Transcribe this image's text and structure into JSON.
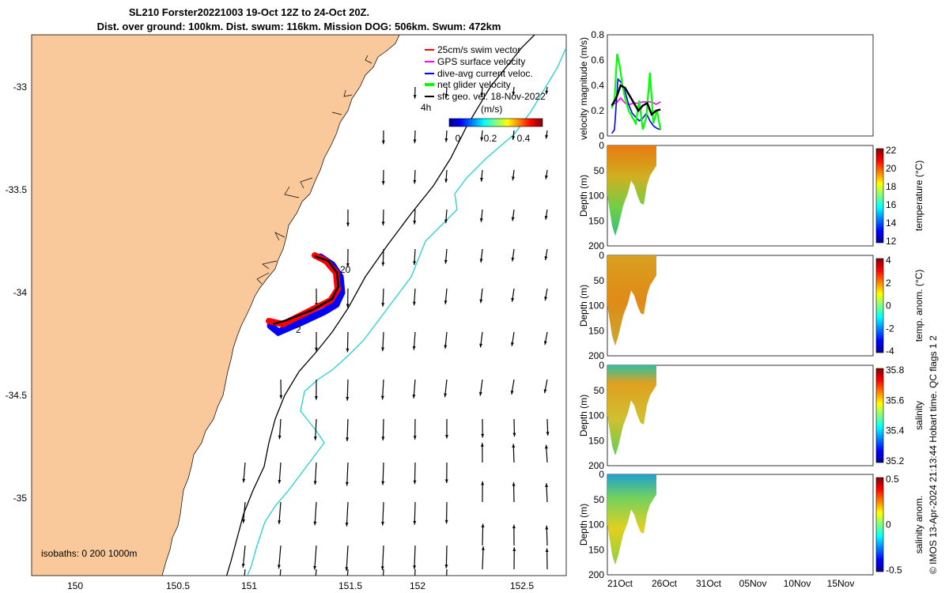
{
  "header": {
    "title_line1": "SL210 Forster20221003 19-Oct 12Z to 24-Oct 20Z.",
    "title_line2": "Dist. over ground: 100km. Dist. swum: 116km. Mission DOG: 506km. Swum: 472km"
  },
  "map": {
    "legend": [
      {
        "label": "25cm/s swim vector",
        "color": "#ff0000"
      },
      {
        "label": "GPS surface velocity",
        "color": "#ff00ff"
      },
      {
        "label": "dive-avg current veloc.",
        "color": "#0000ff"
      },
      {
        "label": "net glider velocity",
        "color": "#00ff00"
      },
      {
        "label": "sfc geo. vel. 18-Nov-2022",
        "color": "#000000"
      }
    ],
    "colorbar_title": "(m/s)",
    "colorbar_ticks": [
      "0",
      "0.2",
      "0.4"
    ],
    "speed_label": "4h",
    "isobaths_label": "isobaths: 0   200  1000m",
    "track_labels": [
      "20",
      "2"
    ],
    "x_ticks": [
      "150",
      "150.5",
      "151",
      "151.5",
      "152",
      "152.5"
    ],
    "y_ticks": [
      "-33",
      "-33.5",
      "-34",
      "-34.5",
      "-35"
    ],
    "land_color": "#f9c89b",
    "isobath_200_color": "#000000",
    "isobath_1000_color": "#22d3d3"
  },
  "chart_data": [
    {
      "type": "line",
      "title": "",
      "ylabel": "velocity magnitude (m/s)",
      "ylim": [
        0,
        0.8
      ],
      "y_ticks": [
        "0",
        "0.2",
        "0.4",
        "0.6",
        "0.8"
      ],
      "series": [
        {
          "name": "GPS surface velocity",
          "color": "#ff00ff",
          "x": [
            19.5,
            20,
            20.5,
            21,
            21.5,
            22,
            22.5,
            23,
            23.5,
            24,
            24.5,
            25
          ],
          "values": [
            0.25,
            0.26,
            0.3,
            0.26,
            0.25,
            0.26,
            0.26,
            0.27,
            0.27,
            0.27,
            0.25,
            0.27
          ]
        },
        {
          "name": "dive-avg current veloc.",
          "color": "#0000ff",
          "x": [
            19.5,
            19.8,
            20.2,
            20.6,
            21,
            21.4,
            21.8,
            22.2,
            22.6,
            23,
            23.4,
            23.8,
            24.2,
            24.6,
            25
          ],
          "values": [
            0.02,
            0.05,
            0.45,
            0.42,
            0.35,
            0.25,
            0.18,
            0.15,
            0.12,
            0.14,
            0.18,
            0.12,
            0.08,
            0.06,
            0.05
          ]
        },
        {
          "name": "net glider velocity",
          "color": "#00ff00",
          "x": [
            19.5,
            19.8,
            20.1,
            20.4,
            20.7,
            21,
            21.4,
            21.8,
            22.2,
            22.6,
            23,
            23.4,
            23.8,
            24.2,
            24.6,
            25
          ],
          "values": [
            0.22,
            0.28,
            0.65,
            0.55,
            0.4,
            0.3,
            0.2,
            0.15,
            0.1,
            0.28,
            0.05,
            0.15,
            0.5,
            0.1,
            0.2,
            0.05
          ]
        },
        {
          "name": "sfc geo. vel.",
          "color": "#000000",
          "x": [
            19.5,
            20,
            20.5,
            21,
            21.5,
            22,
            22.5,
            23,
            23.5,
            24,
            24.5,
            25
          ],
          "values": [
            0.24,
            0.3,
            0.4,
            0.38,
            0.32,
            0.26,
            0.2,
            0.24,
            0.26,
            0.17,
            0.2,
            0.21
          ]
        }
      ]
    },
    {
      "type": "heatmap",
      "ylabel": "Depth (m)",
      "colorbar_label": "temperature (°C)",
      "colorbar_ticks": [
        "22",
        "20",
        "18",
        "16",
        "14",
        "12"
      ],
      "y_ticks": [
        "0",
        "50",
        "100",
        "150",
        "200"
      ]
    },
    {
      "type": "heatmap",
      "ylabel": "Depth (m)",
      "colorbar_label": "temp. anom. (°C)",
      "colorbar_ticks": [
        "4",
        "2",
        "0",
        "-2",
        "-4"
      ],
      "y_ticks": [
        "0",
        "50",
        "100",
        "150",
        "200"
      ]
    },
    {
      "type": "heatmap",
      "ylabel": "Depth (m)",
      "colorbar_label": "salinity",
      "colorbar_ticks": [
        "35.8",
        "35.6",
        "35.4",
        "35.2"
      ],
      "y_ticks": [
        "0",
        "50",
        "100",
        "150",
        "200"
      ]
    },
    {
      "type": "heatmap",
      "ylabel": "Depth (m)",
      "colorbar_label": "salinity anom.",
      "colorbar_ticks": [
        "0.5",
        "0",
        "-0.5"
      ],
      "y_ticks": [
        "0",
        "50",
        "100",
        "150",
        "200"
      ],
      "x_ticks": [
        "21Oct",
        "26Oct",
        "31Oct",
        "05Nov",
        "10Nov",
        "15Nov"
      ]
    }
  ],
  "footer": {
    "side_note": "© IMOS 13-Apr-2024 21:13:44 Hobart time. QC flags 1  2"
  }
}
